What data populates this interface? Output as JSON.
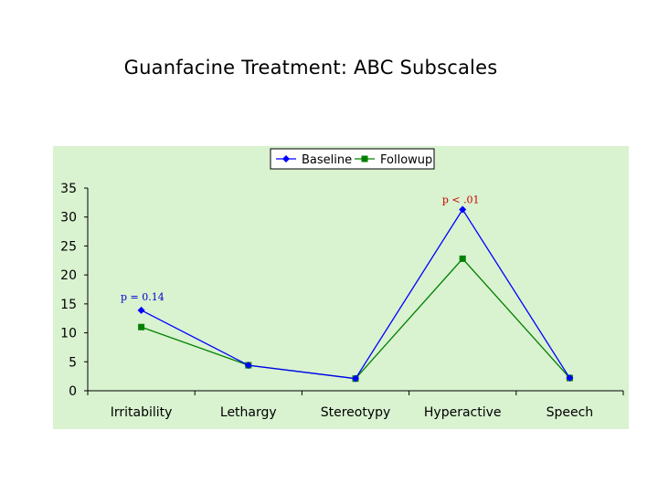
{
  "page": {
    "title": "Guanfacine Treatment: ABC Subscales"
  },
  "chart_data": {
    "type": "line",
    "title": "Guanfacine Treatment: ABC Subscales",
    "xlabel": "",
    "ylabel": "",
    "categories": [
      "Irritability",
      "Lethargy",
      "Stereotypy",
      "Hyperactive",
      "Speech"
    ],
    "series": [
      {
        "name": "Baseline",
        "values": [
          13.9,
          4.4,
          2.1,
          31.3,
          2.2
        ],
        "color": "#0000ff",
        "marker": "diamond"
      },
      {
        "name": "Followup",
        "values": [
          11.0,
          4.4,
          2.1,
          22.8,
          2.2
        ],
        "color": "#008000",
        "marker": "square"
      }
    ],
    "ylim": [
      0,
      35
    ],
    "yticks": [
      0,
      5,
      10,
      15,
      20,
      25,
      30,
      35
    ],
    "grid": false,
    "legend_position": "top",
    "background": "#d9f2d0",
    "annotations": [
      {
        "text": "p = 0.14",
        "category": "Irritability",
        "color": "#0000cc"
      },
      {
        "text": "p < .01",
        "category": "Hyperactive",
        "color": "#cc0000"
      }
    ]
  }
}
